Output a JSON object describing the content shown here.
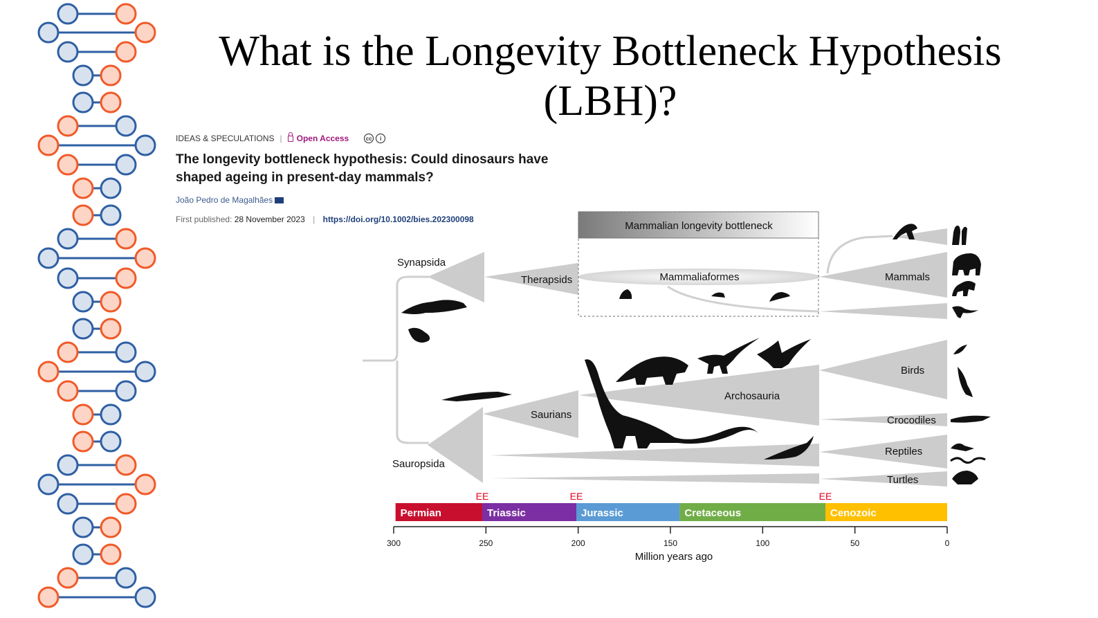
{
  "slide": {
    "title": "What is the Longevity Bottleneck Hypothesis (LBH)?"
  },
  "paper": {
    "section": "IDEAS & SPECULATIONS",
    "access": "Open Access",
    "title": "The longevity bottleneck hypothesis: Could dinosaurs have shaped ageing in present-day mammals?",
    "author": "João Pedro de Magalhães",
    "published_label": "First published:",
    "published_date": "28 November 2023",
    "doi": "https://doi.org/10.1002/bies.202300098"
  },
  "figure": {
    "bottleneck_label": "Mammalian longevity bottleneck",
    "clades": {
      "synapsida": "Synapsida",
      "therapsids": "Therapsids",
      "mammaliaformes": "Mammaliaformes",
      "mammals": "Mammals",
      "sauropsida": "Sauropsida",
      "saurians": "Saurians",
      "archosauria": "Archosauria",
      "birds": "Birds",
      "crocodiles": "Crocodiles",
      "reptiles": "Reptiles",
      "turtles": "Turtles"
    },
    "extinction_marker": "EE",
    "extinction_events_mya": [
      252,
      201,
      66
    ],
    "periods": [
      {
        "name": "Permian",
        "start": 299,
        "end": 252,
        "color": "#c8102e"
      },
      {
        "name": "Triassic",
        "start": 252,
        "end": 201,
        "color": "#7b2fa3"
      },
      {
        "name": "Jurassic",
        "start": 201,
        "end": 145,
        "color": "#5b9bd5"
      },
      {
        "name": "Cretaceous",
        "start": 145,
        "end": 66,
        "color": "#70ad47"
      },
      {
        "name": "Cenozoic",
        "start": 66,
        "end": 0,
        "color": "#ffc000"
      }
    ],
    "axis_ticks": [
      "300",
      "250",
      "200",
      "150",
      "100",
      "50",
      "0"
    ],
    "axis_label": "Million years ago"
  },
  "colors": {
    "dna_orange": "#f05a28",
    "dna_blue": "#2e5fa3",
    "branch_gray": "#cccccc",
    "ee_red": "#e0001b"
  },
  "icons": [
    "dna-helix-icon",
    "lock-icon",
    "cc-icon",
    "by-icon",
    "mail-icon"
  ]
}
